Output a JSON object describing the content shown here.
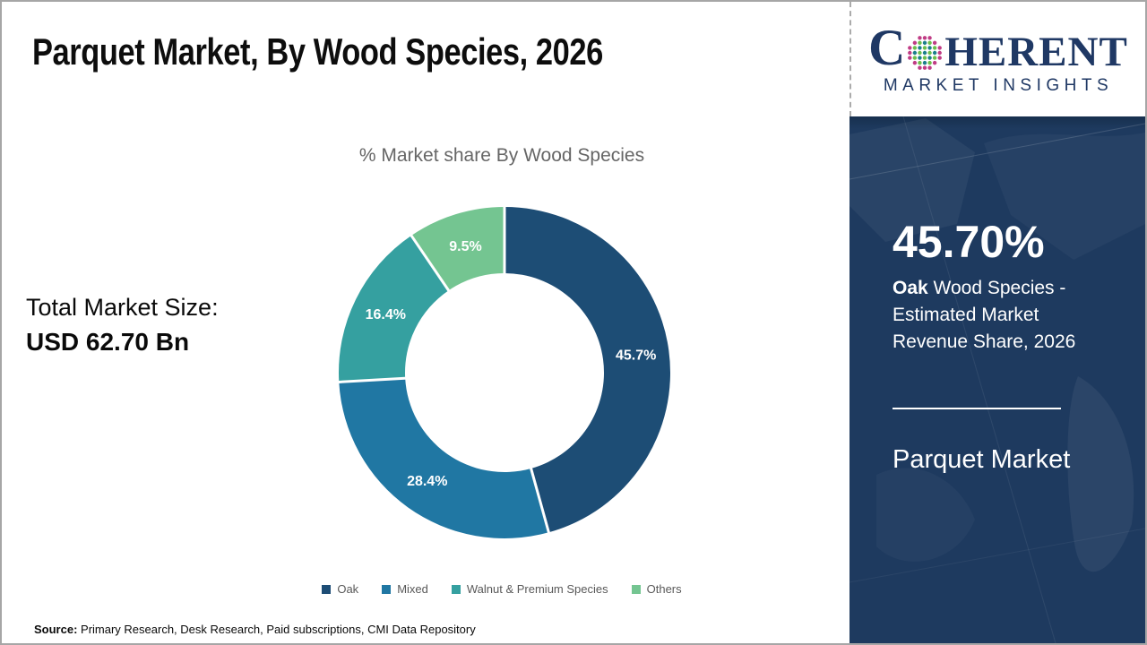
{
  "page": {
    "title": "Parquet Market, By Wood Species, 2026",
    "source_label": "Source:",
    "source_text": " Primary Research, Desk Research, Paid subscriptions, CMI Data Repository"
  },
  "logo": {
    "name": "Coherent Market Insights",
    "word_prefix": "C",
    "word_suffix": "HERENT",
    "subtitle": "MARKET INSIGHTS",
    "globe_icon": "dotted-globe-icon",
    "colors": {
      "navy": "#1F3864",
      "teal": "#1A7F8A",
      "green": "#6ABF4B",
      "pink": "#C03C85"
    }
  },
  "left_stats": {
    "label": "Total Market Size:",
    "value": "USD 62.70 Bn"
  },
  "sidebar": {
    "highlight_value": "45.70%",
    "highlight_lines": [
      {
        "bold": "Oak",
        "rest": " Wood Species -"
      },
      {
        "bold": "",
        "rest": "Estimated Market"
      },
      {
        "bold": "",
        "rest": "Revenue Share, 2026"
      }
    ],
    "footer_title": "Parquet Market",
    "bg_color": "#1e3a5f"
  },
  "chart_data": {
    "type": "pie",
    "donut": true,
    "title": "% Market share By Wood Species",
    "categories": [
      "Oak",
      "Mixed",
      "Walnut & Premium Species",
      "Others"
    ],
    "values": [
      45.7,
      28.4,
      16.4,
      9.5
    ],
    "labels": [
      "45.7%",
      "28.4%",
      "16.4%",
      "9.5%"
    ],
    "colors": [
      "#1D4D75",
      "#2077A3",
      "#35A0A0",
      "#74C591"
    ],
    "start_angle_deg": 0,
    "direction": "clockwise",
    "legend_position": "bottom"
  }
}
